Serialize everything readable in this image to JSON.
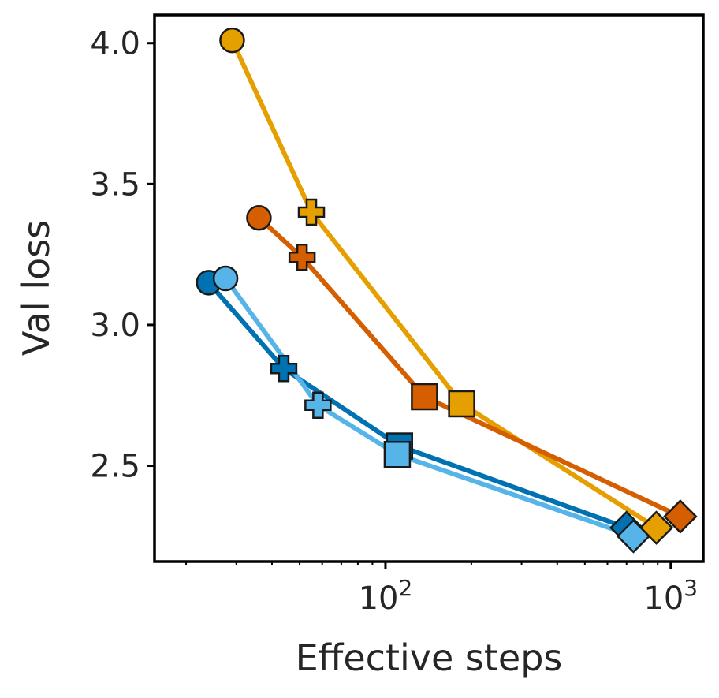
{
  "chart_data": {
    "type": "line",
    "title": "",
    "xlabel": "Effective steps",
    "ylabel": "Val loss",
    "xscale": "log",
    "xlim": [
      15.5,
      1300
    ],
    "ylim": [
      2.16,
      4.1
    ],
    "xticks": [
      {
        "value": 100,
        "base": "10",
        "exp": "2"
      },
      {
        "value": 1000,
        "base": "10",
        "exp": "3"
      }
    ],
    "yticks": [
      {
        "value": 2.5,
        "label": "2.5"
      },
      {
        "value": 3.0,
        "label": "3.0"
      },
      {
        "value": 3.5,
        "label": "3.5"
      },
      {
        "value": 4.0,
        "label": "4.0"
      }
    ],
    "grid": false,
    "legend": "none",
    "markers": [
      "circle",
      "plus",
      "square",
      "diamond"
    ],
    "series": [
      {
        "color": "#e69f00",
        "points": [
          {
            "x": 29,
            "y": 4.01
          },
          {
            "x": 55,
            "y": 3.4
          },
          {
            "x": 185,
            "y": 2.72
          },
          {
            "x": 890,
            "y": 2.28
          }
        ]
      },
      {
        "color": "#d55e00",
        "points": [
          {
            "x": 36,
            "y": 3.38
          },
          {
            "x": 51,
            "y": 3.24
          },
          {
            "x": 137,
            "y": 2.745
          },
          {
            "x": 1080,
            "y": 2.32
          }
        ]
      },
      {
        "color": "#0072b2",
        "points": [
          {
            "x": 24,
            "y": 3.15
          },
          {
            "x": 44,
            "y": 2.845
          },
          {
            "x": 112,
            "y": 2.57
          },
          {
            "x": 700,
            "y": 2.28
          }
        ]
      },
      {
        "color": "#56b4e9",
        "points": [
          {
            "x": 27.5,
            "y": 3.165
          },
          {
            "x": 58,
            "y": 2.715
          },
          {
            "x": 110,
            "y": 2.54
          },
          {
            "x": 740,
            "y": 2.25
          }
        ]
      }
    ]
  }
}
